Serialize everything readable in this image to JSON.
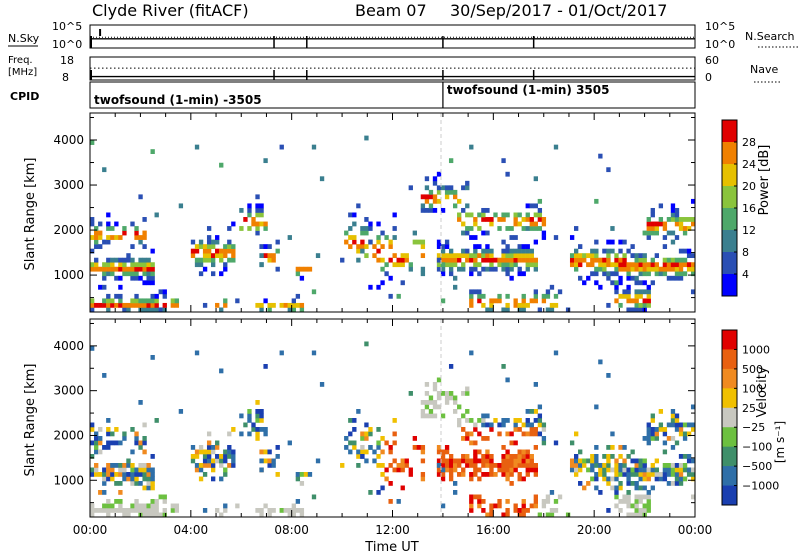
{
  "header": {
    "station": "Clyde River (fitACF)",
    "beam": "Beam 07",
    "date_range": "30/Sep/2017 - 01/Oct/2017"
  },
  "chart_data": [
    {
      "type": "line",
      "name": "noise",
      "left_label": "N.Sky",
      "right_label": "N.Search",
      "left_ticks": [
        "10^5",
        "10^0"
      ],
      "right_ticks": [
        "10^5",
        "10^0"
      ],
      "series": [
        {
          "name": "N.Sky",
          "style": "solid",
          "value_log10": 2.0
        },
        {
          "name": "N.Search",
          "style": "dotted",
          "value_log10": 2.0
        }
      ]
    },
    {
      "type": "line",
      "name": "frequency",
      "left_label_1": "Freq.",
      "left_label_2": "[MHz]",
      "left_ticks": [
        "18",
        "8"
      ],
      "right_label": "Nave",
      "right_ticks": [
        "60",
        "0"
      ],
      "series": [
        {
          "name": "Freq.",
          "style": "solid",
          "value_mhz": 9.5
        },
        {
          "name": "Nave",
          "style": "dotted",
          "value": 31
        }
      ]
    },
    {
      "type": "table",
      "name": "cpid",
      "label": "CPID",
      "segments": [
        {
          "text": "twofsound (1-min) -3505",
          "start_h": 0,
          "end_h": 14
        },
        {
          "text": "twofsound (1-min) 3505",
          "start_h": 14,
          "end_h": 24
        }
      ]
    },
    {
      "type": "heatmap",
      "name": "power",
      "ylabel": "Slant Range [km]",
      "xlim": [
        0,
        24
      ],
      "ylim": [
        180,
        4600
      ],
      "yticks": [
        "1000",
        "2000",
        "3000",
        "4000"
      ],
      "xtick_marks": [
        0,
        4,
        8,
        12,
        16,
        20,
        24
      ],
      "colorbar": {
        "label": "Power [dB]",
        "ticks": [
          "4",
          "8",
          "12",
          "16",
          "20",
          "24",
          "28"
        ],
        "colors": [
          "#0000ff",
          "#2a4fb4",
          "#3a7f8f",
          "#4ea86a",
          "#8ac43c",
          "#e6c000",
          "#f08000",
          "#e00000"
        ]
      }
    },
    {
      "type": "heatmap",
      "name": "velocity",
      "ylabel": "Slant Range [km]",
      "xlabel": "Time UT",
      "xlim": [
        0,
        24
      ],
      "ylim": [
        180,
        4600
      ],
      "yticks": [
        "1000",
        "2000",
        "3000",
        "4000"
      ],
      "xticks": [
        "00:00",
        "04:00",
        "08:00",
        "12:00",
        "16:00",
        "20:00",
        "00:00"
      ],
      "colorbar": {
        "label": "Velocity",
        "unit": "[m s⁻¹]",
        "ticks": [
          "1000",
          "500",
          "100",
          "25",
          "−25",
          "−100",
          "−500",
          "−1000"
        ],
        "colors": [
          "#1a3fb0",
          "#2f6fa8",
          "#3f8f6a",
          "#6cc040",
          "#c8c8c0",
          "#f0c000",
          "#f08a20",
          "#e86010",
          "#e00000"
        ]
      }
    }
  ]
}
